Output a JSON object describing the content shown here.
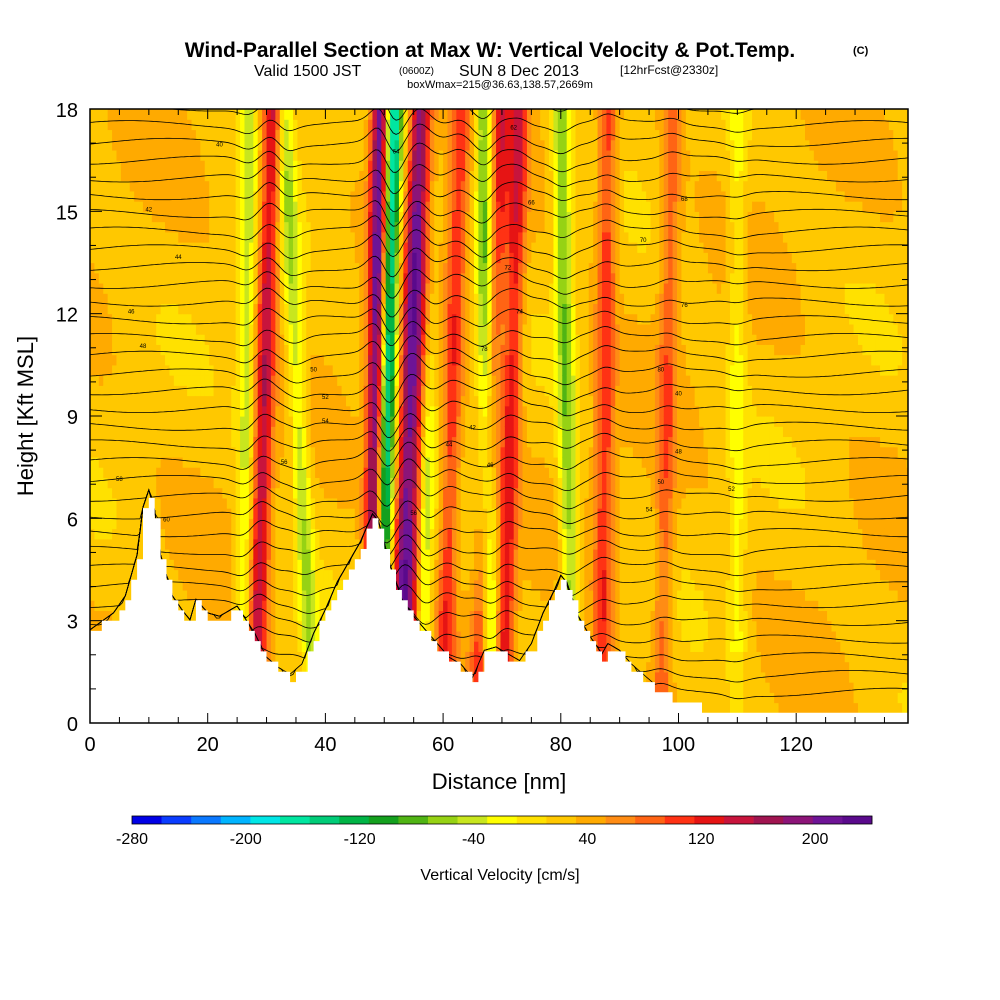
{
  "header": {
    "title": "Wind-Parallel Section at Max W: Vertical Velocity & Pot.Temp.",
    "copyright": "(C)",
    "valid_prefix": "Valid 1500 JST",
    "valid_utc": "(0600Z)",
    "valid_date": "SUN 8 Dec 2013",
    "forecast": "[12hrFcst@2330z]",
    "box_info": "boxWmax=215@36.63,138.57,2669m"
  },
  "chart_data": {
    "type": "heatmap",
    "xlabel": "Distance [nm]",
    "ylabel": "Height [Kft MSL]",
    "xlim": [
      0,
      139
    ],
    "ylim": [
      0,
      18
    ],
    "xticks": [
      "0",
      "20",
      "40",
      "60",
      "80",
      "100",
      "120"
    ],
    "yticks": [
      "0",
      "3",
      "6",
      "9",
      "12",
      "15",
      "18"
    ],
    "colorbar": {
      "label": "Vertical Velocity [cm/s]",
      "min": -280,
      "max": 240,
      "step": 20,
      "tick_labels": [
        "-280",
        "-200",
        "-120",
        "-40",
        "40",
        "120",
        "200"
      ],
      "colors": [
        "#0000e6",
        "#0a3cff",
        "#0a78ff",
        "#00b4ff",
        "#00e6e6",
        "#00e6a0",
        "#00cc78",
        "#00b446",
        "#14a01e",
        "#50b414",
        "#96d214",
        "#c8e61e",
        "#ffff00",
        "#ffe100",
        "#ffc800",
        "#ffaa00",
        "#ff8c14",
        "#ff6414",
        "#ff3214",
        "#e61414",
        "#c8143c",
        "#a01450",
        "#8c1478",
        "#6e1496",
        "#5a0a8c"
      ]
    },
    "terrain_height_kft": [
      [
        0,
        2.6
      ],
      [
        4,
        3.1
      ],
      [
        6,
        3.6
      ],
      [
        8,
        4.8
      ],
      [
        9,
        6.2
      ],
      [
        10,
        6.7
      ],
      [
        11,
        6.1
      ],
      [
        12,
        4.8
      ],
      [
        14,
        3.6
      ],
      [
        16,
        3.1
      ],
      [
        17,
        2.9
      ],
      [
        18,
        3.5
      ],
      [
        20,
        3.1
      ],
      [
        22,
        3.0
      ],
      [
        25,
        3.3
      ],
      [
        28,
        2.5
      ],
      [
        30,
        1.8
      ],
      [
        32,
        1.5
      ],
      [
        34,
        1.3
      ],
      [
        36,
        1.6
      ],
      [
        38,
        2.5
      ],
      [
        40,
        3.2
      ],
      [
        42,
        4.0
      ],
      [
        44,
        4.6
      ],
      [
        46,
        5.2
      ],
      [
        48,
        6.0
      ],
      [
        49,
        5.8
      ],
      [
        51,
        4.5
      ],
      [
        53,
        3.5
      ],
      [
        55,
        3.0
      ],
      [
        57,
        2.6
      ],
      [
        59,
        2.2
      ],
      [
        61,
        1.8
      ],
      [
        63,
        1.6
      ],
      [
        65,
        1.2
      ],
      [
        67,
        2.0
      ],
      [
        69,
        2.1
      ],
      [
        71,
        1.9
      ],
      [
        73,
        1.7
      ],
      [
        75,
        2.2
      ],
      [
        77,
        3.1
      ],
      [
        79,
        3.8
      ],
      [
        80,
        4.2
      ],
      [
        81,
        4.0
      ],
      [
        83,
        3.0
      ],
      [
        85,
        2.4
      ],
      [
        87,
        1.9
      ],
      [
        88,
        2.2
      ],
      [
        90,
        2.0
      ],
      [
        92,
        1.6
      ],
      [
        94,
        1.3
      ],
      [
        96,
        1.0
      ],
      [
        98,
        0.8
      ],
      [
        100,
        0.6
      ],
      [
        102,
        0.5
      ],
      [
        104,
        0.4
      ],
      [
        105,
        0.3
      ],
      [
        139,
        0.3
      ]
    ],
    "updraft_bands_nm": [
      {
        "x_bottom": 48,
        "x_top": 49.5,
        "w_peak": 215
      },
      {
        "x_bottom": 28,
        "x_top": 31,
        "w_peak": 120
      },
      {
        "x_bottom": 52,
        "x_top": 56,
        "w_peak": 150
      },
      {
        "x_bottom": 54,
        "x_top": 58,
        "w_peak": 120
      },
      {
        "x_bottom": 60,
        "x_top": 63,
        "w_peak": 80
      },
      {
        "x_bottom": 70,
        "x_top": 73,
        "w_peak": 100
      },
      {
        "x_bottom": 66,
        "x_top": 70,
        "w_peak": 90
      },
      {
        "x_bottom": 87,
        "x_top": 88,
        "w_peak": 80
      },
      {
        "x_bottom": 97,
        "x_top": 99,
        "w_peak": 60
      }
    ],
    "downdraft_bands_nm": [
      {
        "x_bottom": 49,
        "x_top": 51.5,
        "w_peak": -230
      },
      {
        "x_bottom": 56,
        "x_top": 58,
        "w_peak": -90
      },
      {
        "x_bottom": 82,
        "x_top": 80,
        "w_peak": -90
      },
      {
        "x_bottom": 68,
        "x_top": 67,
        "w_peak": -110
      },
      {
        "x_bottom": 26,
        "x_top": 27,
        "w_peak": -60
      },
      {
        "x_bottom": 38,
        "x_top": 33,
        "w_peak": -70
      },
      {
        "x_bottom": 110,
        "x_top": 110,
        "w_peak": -40
      }
    ],
    "theta_contour_labels": [
      "40",
      "42",
      "44",
      "46",
      "48",
      "50",
      "52",
      "54",
      "56",
      "58",
      "60",
      "62",
      "64",
      "66",
      "68",
      "70",
      "72",
      "74",
      "76",
      "78",
      "80"
    ]
  }
}
